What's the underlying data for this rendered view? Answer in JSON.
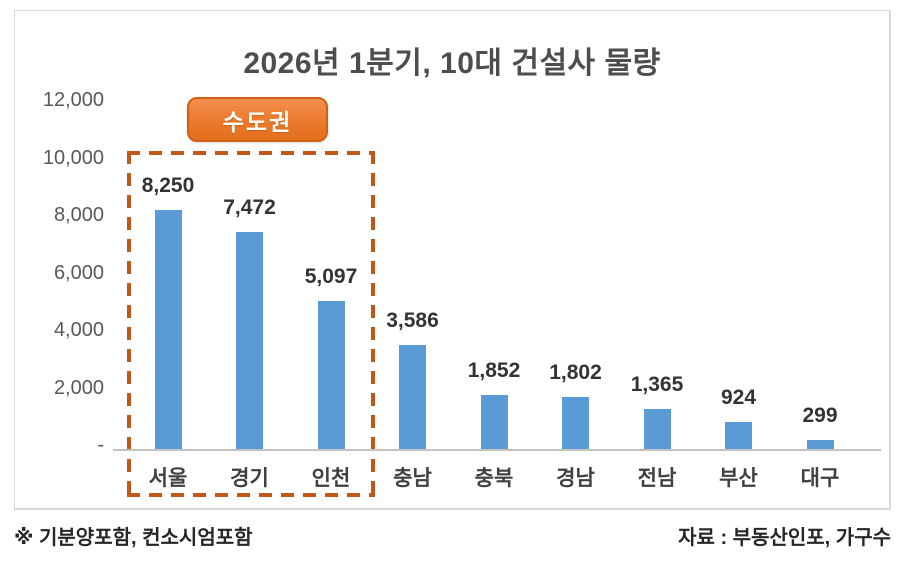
{
  "chart_data": {
    "type": "bar",
    "title": "2026년 1분기, 10대 건설사 물량",
    "categories": [
      "서울",
      "경기",
      "인천",
      "충남",
      "충북",
      "경남",
      "전남",
      "부산",
      "대구"
    ],
    "values": [
      8250,
      7472,
      5097,
      3586,
      1852,
      1802,
      1365,
      924,
      299
    ],
    "value_labels": [
      "8,250",
      "7,472",
      "5,097",
      "3,586",
      "1,852",
      "1,802",
      "1,365",
      "924",
      "299"
    ],
    "xlabel": "",
    "ylabel": "",
    "ylim": [
      0,
      12000
    ],
    "y_ticks": [
      {
        "value": 12000,
        "label": "12,000"
      },
      {
        "value": 10000,
        "label": "10,000"
      },
      {
        "value": 8000,
        "label": "8,000"
      },
      {
        "value": 6000,
        "label": "6,000"
      },
      {
        "value": 4000,
        "label": "4,000"
      },
      {
        "value": 2000,
        "label": "2,000"
      },
      {
        "value": 0,
        "label": "-"
      }
    ],
    "grid": false,
    "legend_position": "none",
    "bar_color": "#5b9bd5",
    "annotation": {
      "badge_label": "수도권",
      "covers_categories": [
        "서울",
        "경기",
        "인천"
      ],
      "badge_fill": "#ed7d31",
      "badge_border": "#cf5f16",
      "dashed_box_color": "#c2571a"
    }
  },
  "footnotes": {
    "left": "※ 기분양포함, 컨소시엄포함",
    "right": "자료 : 부동산인포, 가구수"
  }
}
